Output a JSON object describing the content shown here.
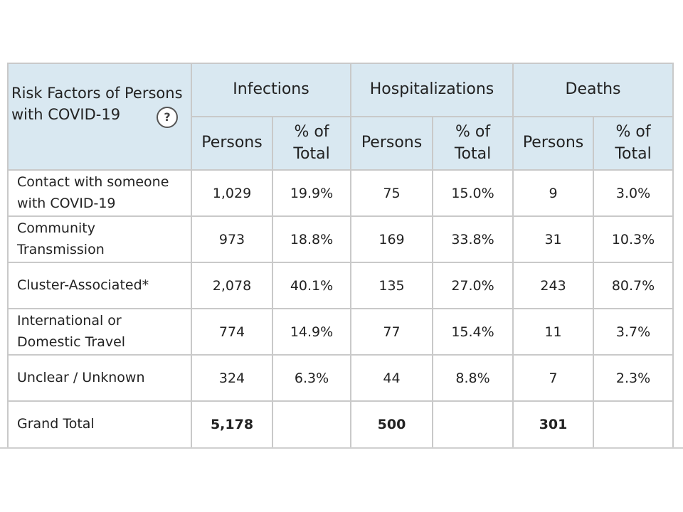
{
  "table": {
    "header": {
      "title": "Risk Factors of Persons with COVID-19",
      "help_icon": "?",
      "groups": [
        "Infections",
        "Hospitalizations",
        "Deaths"
      ],
      "subheaders": [
        "Persons",
        "% of Total",
        "Persons",
        "% of Total",
        "Persons",
        "% of Total"
      ]
    },
    "rows": [
      [
        "Contact with someone with COVID-19",
        "1,029",
        "19.9%",
        "75",
        "15.0%",
        "9",
        "3.0%"
      ],
      [
        "Community Transmission",
        "973",
        "18.8%",
        "169",
        "33.8%",
        "31",
        "10.3%"
      ],
      [
        "Cluster-Associated*",
        "2,078",
        "40.1%",
        "135",
        "27.0%",
        "243",
        "80.7%"
      ],
      [
        "International or Domestic Travel",
        "774",
        "14.9%",
        "77",
        "15.4%",
        "11",
        "3.7%"
      ],
      [
        "Unclear / Unknown",
        "324",
        "6.3%",
        "44",
        "8.8%",
        "7",
        "2.3%"
      ]
    ],
    "total": {
      "label": "Grand Total",
      "values": [
        "5,178",
        "500",
        "301"
      ]
    }
  }
}
